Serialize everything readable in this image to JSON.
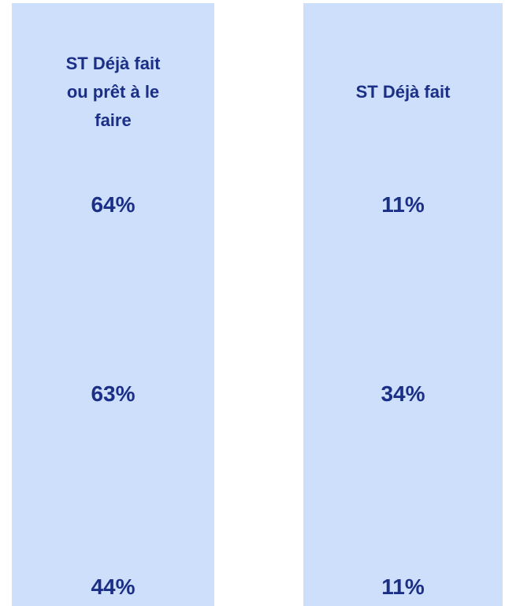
{
  "table": {
    "columns": [
      {
        "header": "ST Déjà fait ou prêt à le faire",
        "values": [
          "64%",
          "63%",
          "44%"
        ]
      },
      {
        "header": "ST Déjà fait",
        "values": [
          "11%",
          "34%",
          "11%"
        ]
      }
    ]
  }
}
